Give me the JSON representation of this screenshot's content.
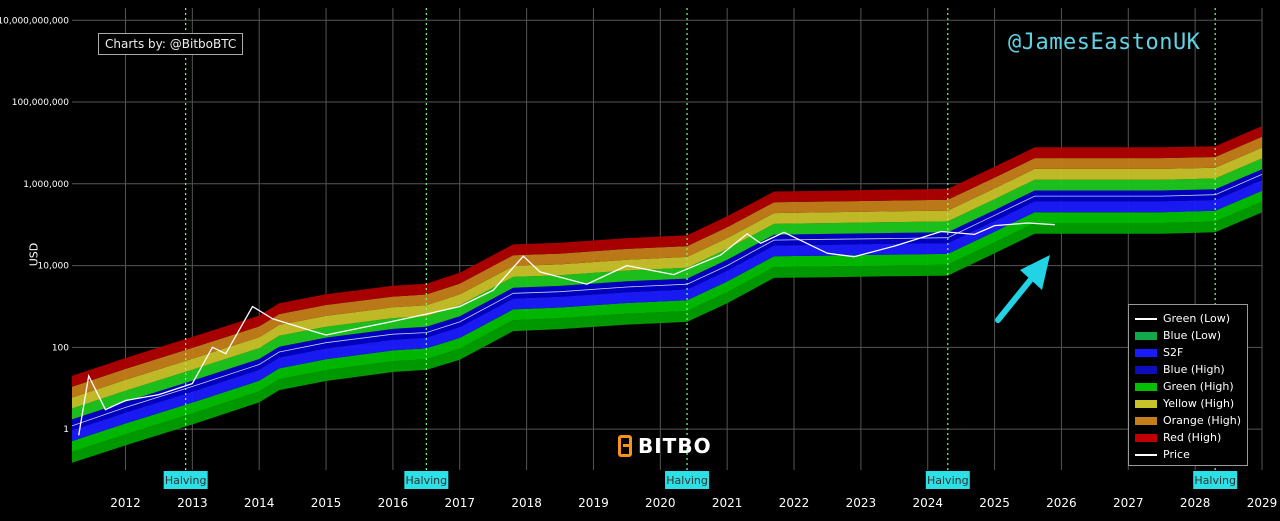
{
  "header": {
    "credit": "Charts by: @BitboBTC",
    "handle": "@JamesEastonUK"
  },
  "logo": {
    "text": "BITBO"
  },
  "chart_data": {
    "type": "area",
    "ylabel": "USD",
    "yscale": "log",
    "ylim": [
      0.1,
      100000000
    ],
    "xlim": [
      2011.2,
      2029
    ],
    "y_ticks": [
      {
        "value": 1,
        "label": "1"
      },
      {
        "value": 100,
        "label": "100"
      },
      {
        "value": 10000,
        "label": "10,000"
      },
      {
        "value": 1000000,
        "label": "1,000,000"
      },
      {
        "value": 100000000,
        "label": "100,000,000"
      },
      {
        "value": 10000000000,
        "label": "10,000,000,000"
      }
    ],
    "x_ticks": [
      2012,
      2013,
      2014,
      2015,
      2016,
      2017,
      2018,
      2019,
      2020,
      2021,
      2022,
      2023,
      2024,
      2025,
      2026,
      2027,
      2028,
      2029
    ],
    "halvings": [
      {
        "x": 2012.9,
        "label": "Halving"
      },
      {
        "x": 2016.5,
        "label": "Halving"
      },
      {
        "x": 2020.4,
        "label": "Halving"
      },
      {
        "x": 2024.3,
        "label": "Halving"
      },
      {
        "x": 2028.3,
        "label": "Halving"
      }
    ],
    "bands": {
      "x": [
        2011.2,
        2012.0,
        2013.0,
        2014.0,
        2014.3,
        2015.0,
        2016.0,
        2016.5,
        2017.0,
        2017.8,
        2018.5,
        2019.5,
        2020.4,
        2021.0,
        2021.7,
        2022.5,
        2023.5,
        2024.3,
        2025.0,
        2025.6,
        2026.5,
        2027.5,
        2028.3,
        2029.0
      ],
      "green_low": [
        0.15,
        0.4,
        1.3,
        4.5,
        9,
        15,
        25,
        28,
        50,
        250,
        280,
        360,
        420,
        1200,
        5000,
        5200,
        5500,
        5700,
        20000,
        60000,
        60000,
        60000,
        65000,
        200000
      ],
      "s2f": [
        1.2,
        3.4,
        11,
        38,
        77,
        130,
        210,
        230,
        420,
        2100,
        2300,
        3000,
        3500,
        10000,
        42000,
        44000,
        46000,
        48000,
        170000,
        500000,
        500000,
        500000,
        540000,
        1700000
      ],
      "red_high": [
        20,
        55,
        180,
        600,
        1200,
        2000,
        3200,
        3600,
        6700,
        33000,
        36000,
        47000,
        55000,
        160000,
        650000,
        680000,
        720000,
        750000,
        2600000,
        7800000,
        7800000,
        7800000,
        8300000,
        26000000
      ]
    },
    "price": {
      "x": [
        2011.3,
        2011.45,
        2011.7,
        2012.0,
        2012.5,
        2013.0,
        2013.3,
        2013.5,
        2013.9,
        2014.2,
        2014.8,
        2015.0,
        2015.9,
        2016.5,
        2017.0,
        2017.5,
        2017.95,
        2018.2,
        2018.9,
        2019.5,
        2020.2,
        2020.9,
        2021.3,
        2021.5,
        2021.85,
        2022.5,
        2022.9,
        2023.5,
        2024.2,
        2024.7,
        2025.0,
        2025.5,
        2025.9
      ],
      "y": [
        0.7,
        20,
        3,
        5,
        7,
        13,
        100,
        70,
        1000,
        500,
        250,
        200,
        400,
        650,
        1000,
        2500,
        17000,
        7000,
        3500,
        10000,
        6000,
        18000,
        60000,
        35000,
        65000,
        20000,
        16500,
        30000,
        68000,
        58000,
        95000,
        110000,
        100000
      ]
    },
    "legend": [
      {
        "label": "Green (Low)",
        "color": "#ffffff",
        "kind": "line"
      },
      {
        "label": "Blue (Low)",
        "color": "#11a84a",
        "kind": "band"
      },
      {
        "label": "S2F",
        "color": "#1a1aff",
        "kind": "band"
      },
      {
        "label": "Blue (High)",
        "color": "#0d0dbb",
        "kind": "band"
      },
      {
        "label": "Green (High)",
        "color": "#00c000",
        "kind": "band"
      },
      {
        "label": "Yellow (High)",
        "color": "#c9c32a",
        "kind": "band"
      },
      {
        "label": "Orange (High)",
        "color": "#c47e1a",
        "kind": "band"
      },
      {
        "label": "Red (High)",
        "color": "#c00000",
        "kind": "band"
      },
      {
        "label": "Price",
        "color": "#ffffff",
        "kind": "line"
      }
    ],
    "band_colors": [
      "#00a000",
      "#00c000",
      "#1a1aff",
      "#0000c8",
      "#1ec81e",
      "#c9c32a",
      "#c47e1a",
      "#b00000"
    ],
    "annotation": {
      "type": "arrow",
      "color": "#22d3e6"
    }
  }
}
